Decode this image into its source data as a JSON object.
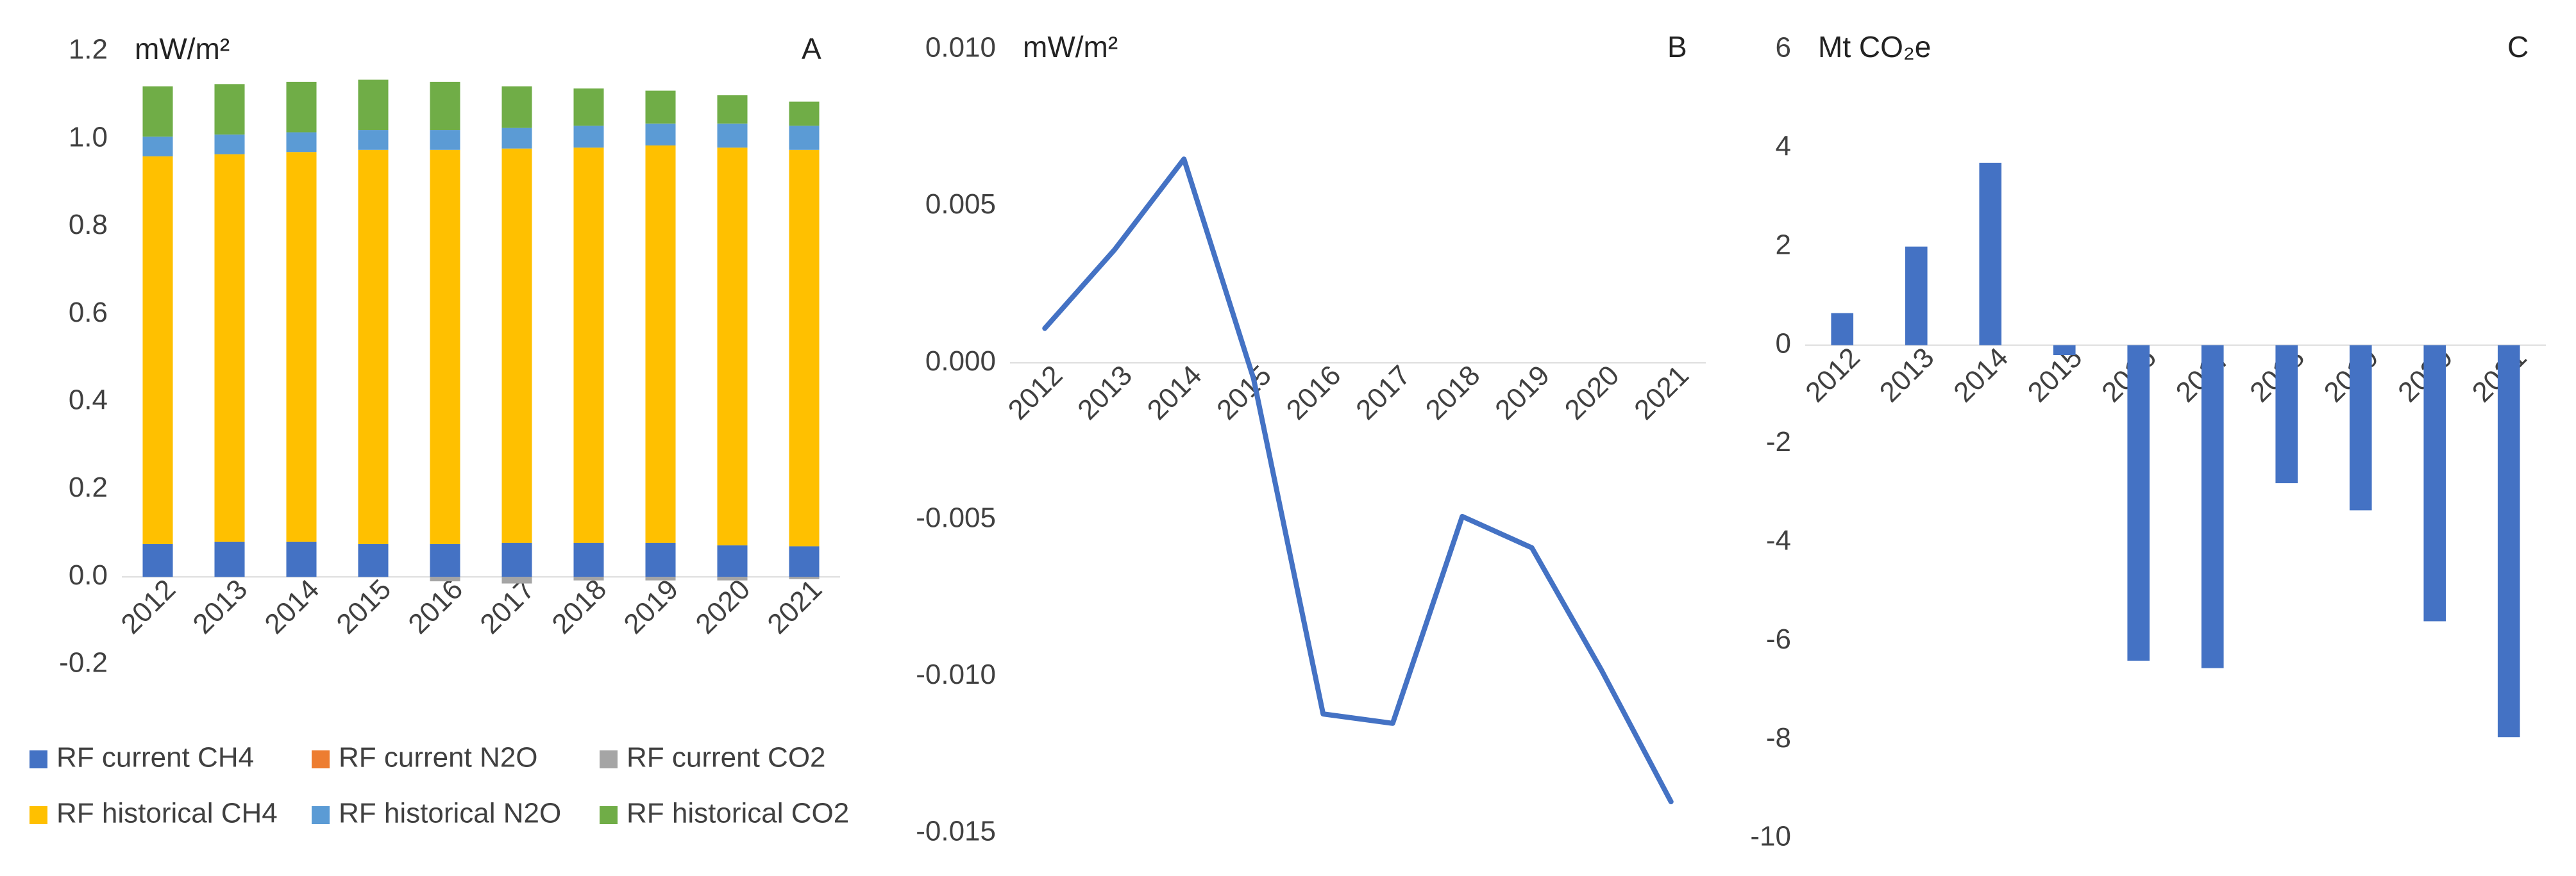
{
  "chart_data": [
    {
      "type": "bar",
      "stacked": true,
      "panel_label": "A",
      "y_label": "mW/m²",
      "categories": [
        "2012",
        "2013",
        "2014",
        "2015",
        "2016",
        "2017",
        "2018",
        "2019",
        "2020",
        "2021"
      ],
      "series": [
        {
          "name": "RF current CH4",
          "color": "#4472c4",
          "values": [
            0.075,
            0.08,
            0.08,
            0.075,
            0.075,
            0.078,
            0.078,
            0.078,
            0.072,
            0.07
          ]
        },
        {
          "name": "RF current N2O",
          "color": "#ed7d31",
          "values": [
            0,
            0,
            0,
            0,
            0,
            0,
            0,
            0,
            0,
            0
          ]
        },
        {
          "name": "RF current CO2",
          "color": "#a5a5a5",
          "values": [
            0,
            0,
            0,
            0,
            -0.01,
            -0.015,
            -0.008,
            -0.008,
            -0.008,
            -0.005
          ]
        },
        {
          "name": "RF historical CH4",
          "color": "#ffc000",
          "values": [
            0.885,
            0.885,
            0.89,
            0.9,
            0.9,
            0.9,
            0.902,
            0.907,
            0.908,
            0.905
          ]
        },
        {
          "name": "RF historical N2O",
          "color": "#5b9bd5",
          "values": [
            0.045,
            0.045,
            0.045,
            0.045,
            0.045,
            0.047,
            0.05,
            0.05,
            0.055,
            0.055
          ]
        },
        {
          "name": "RF historical CO2",
          "color": "#70ad47",
          "values": [
            0.115,
            0.115,
            0.115,
            0.115,
            0.11,
            0.095,
            0.085,
            0.075,
            0.065,
            0.055
          ]
        }
      ],
      "ylim": [
        -0.2,
        1.2
      ],
      "yticks": [
        -0.2,
        {
          "value": 0,
          "label": "0.0"
        },
        0.2,
        0.4,
        0.6,
        0.8,
        {
          "value": 1,
          "label": "1.0"
        },
        1.2
      ],
      "grid": false
    },
    {
      "type": "line",
      "panel_label": "B",
      "y_label": "mW/m²",
      "categories": [
        "2012",
        "2013",
        "2014",
        "2015",
        "2016",
        "2017",
        "2018",
        "2019",
        "2020",
        "2021"
      ],
      "series": [
        {
          "color": "#4472c4",
          "values": [
            0.0011,
            0.0036,
            0.0065,
            -0.0005,
            -0.0112,
            -0.0115,
            -0.0049,
            -0.0059,
            -0.0098,
            -0.014
          ]
        }
      ],
      "ylim": [
        -0.015,
        0.01
      ],
      "yticks": [
        -0.015,
        {
          "value": -0.01,
          "label": "-0.010"
        },
        -0.005,
        {
          "value": 0,
          "label": "0.000"
        },
        0.005,
        {
          "value": 0.01,
          "label": "0.010"
        }
      ],
      "grid": false
    },
    {
      "type": "bar",
      "panel_label": "C",
      "y_label": "Mt CO₂e",
      "categories": [
        "2012",
        "2013",
        "2014",
        "2015",
        "2016",
        "2017",
        "2018",
        "2019",
        "2020",
        "2021"
      ],
      "series": [
        {
          "color": "#4472c4",
          "values": [
            0.65,
            2.0,
            3.7,
            -0.2,
            -6.4,
            -6.55,
            -2.8,
            -3.35,
            -5.6,
            -7.95
          ]
        }
      ],
      "ylim": [
        -10,
        6
      ],
      "yticks": [
        -10,
        -8,
        -6,
        -4,
        -2,
        0,
        2,
        4,
        6
      ],
      "grid": false
    }
  ]
}
